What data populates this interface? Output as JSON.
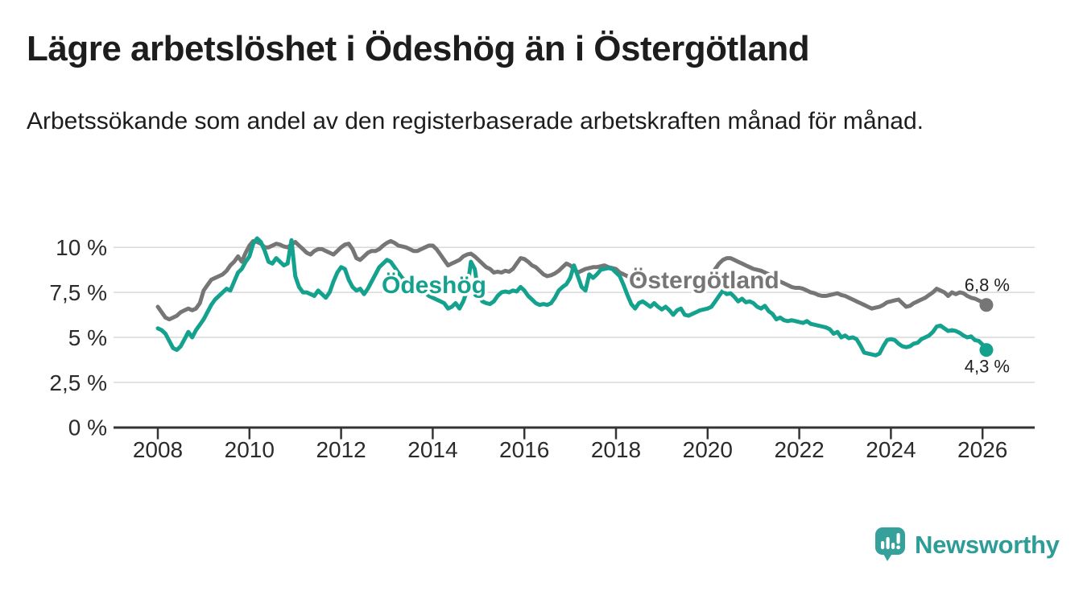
{
  "header": {
    "title": "Lägre arbetslöshet i Ödeshög än i Östergötland",
    "subtitle": "Arbetssökande som andel av den registerbaserade arbetskraften månad för månad."
  },
  "chart_data": {
    "type": "line",
    "unit": "%",
    "title": "Lägre arbetslöshet i Ödeshög än i Östergötland",
    "x_start_year": 2008,
    "x_step_months": 1,
    "x_end": "2026-02",
    "xlim": [
      2007.0,
      2027.2
    ],
    "ylim": [
      0,
      10.8
    ],
    "grid": "horizontal",
    "legend_position": "inline-labels",
    "y_ticks": [
      {
        "value": 0,
        "label": "0 %"
      },
      {
        "value": 2.5,
        "label": "2,5 %"
      },
      {
        "value": 5,
        "label": "5 %"
      },
      {
        "value": 7.5,
        "label": "7,5 %"
      },
      {
        "value": 10,
        "label": "10 %"
      }
    ],
    "x_ticks": [
      {
        "year": 2008,
        "label": "2008"
      },
      {
        "year": 2010,
        "label": "2010"
      },
      {
        "year": 2012,
        "label": "2012"
      },
      {
        "year": 2014,
        "label": "2014"
      },
      {
        "year": 2016,
        "label": "2016"
      },
      {
        "year": 2018,
        "label": "2018"
      },
      {
        "year": 2020,
        "label": "2020"
      },
      {
        "year": 2022,
        "label": "2022"
      },
      {
        "year": 2024,
        "label": "2024"
      },
      {
        "year": 2026,
        "label": "2026"
      }
    ],
    "series": [
      {
        "name": "Östergötland",
        "label": "Östergötland",
        "color": "#767676",
        "end_label": "6,8 %",
        "end_value": 6.8,
        "end_label_side": "above",
        "values": [
          6.7,
          6.4,
          6.1,
          6.0,
          6.1,
          6.2,
          6.4,
          6.5,
          6.6,
          6.5,
          6.6,
          6.9,
          7.6,
          7.9,
          8.2,
          8.3,
          8.4,
          8.5,
          8.7,
          9.0,
          9.2,
          9.5,
          9.2,
          9.7,
          10.1,
          10.35,
          10.3,
          10.2,
          10.0,
          10.0,
          10.1,
          10.2,
          10.15,
          10.05,
          10.0,
          10.15,
          10.3,
          10.1,
          9.9,
          9.7,
          9.6,
          9.8,
          9.9,
          9.9,
          9.8,
          9.7,
          9.6,
          9.8,
          10.0,
          10.15,
          10.2,
          9.9,
          9.4,
          9.3,
          9.5,
          9.7,
          9.8,
          9.8,
          9.9,
          10.1,
          10.25,
          10.35,
          10.25,
          10.1,
          10.05,
          10.0,
          9.9,
          9.8,
          9.8,
          9.9,
          10.0,
          10.1,
          10.1,
          9.9,
          9.6,
          9.3,
          9.0,
          9.1,
          9.2,
          9.3,
          9.5,
          9.6,
          9.65,
          9.5,
          9.3,
          9.1,
          8.9,
          8.8,
          8.6,
          8.65,
          8.6,
          8.7,
          8.65,
          8.8,
          9.1,
          9.4,
          9.35,
          9.2,
          9.0,
          8.9,
          8.7,
          8.5,
          8.4,
          8.45,
          8.55,
          8.7,
          8.9,
          9.1,
          9.0,
          8.8,
          8.6,
          8.7,
          8.8,
          8.85,
          8.9,
          8.9,
          8.95,
          9.0,
          8.9,
          8.85,
          8.8,
          8.6,
          8.5,
          8.4,
          8.35,
          8.3,
          8.25,
          8.3,
          8.35,
          8.3,
          8.25,
          8.3,
          8.3,
          8.25,
          8.2,
          8.15,
          8.1,
          8.15,
          8.2,
          8.1,
          8.05,
          8.1,
          8.2,
          8.3,
          8.4,
          8.5,
          8.8,
          9.1,
          9.3,
          9.4,
          9.4,
          9.3,
          9.2,
          9.1,
          9.0,
          8.9,
          8.8,
          8.75,
          8.7,
          8.6,
          8.5,
          8.35,
          8.2,
          8.1,
          8.0,
          7.9,
          7.8,
          7.75,
          7.75,
          7.7,
          7.6,
          7.5,
          7.45,
          7.35,
          7.3,
          7.3,
          7.35,
          7.4,
          7.45,
          7.35,
          7.3,
          7.2,
          7.1,
          7.0,
          6.9,
          6.8,
          6.7,
          6.6,
          6.65,
          6.7,
          6.8,
          6.95,
          7.0,
          7.05,
          7.1,
          6.9,
          6.7,
          6.75,
          6.9,
          7.0,
          7.1,
          7.2,
          7.35,
          7.5,
          7.7,
          7.6,
          7.5,
          7.3,
          7.5,
          7.4,
          7.5,
          7.45,
          7.3,
          7.2,
          7.15,
          7.05,
          6.95,
          6.8
        ]
      },
      {
        "name": "Ödeshög",
        "label": "Ödeshög",
        "color": "#14a28e",
        "end_label": "4,3 %",
        "end_value": 4.3,
        "end_label_side": "below",
        "values": [
          5.5,
          5.4,
          5.2,
          4.8,
          4.4,
          4.3,
          4.5,
          4.9,
          5.3,
          5.0,
          5.4,
          5.7,
          6.0,
          6.4,
          6.8,
          7.1,
          7.3,
          7.5,
          7.7,
          7.6,
          8.1,
          8.6,
          8.8,
          9.2,
          9.5,
          10.2,
          10.5,
          10.3,
          9.8,
          9.2,
          9.1,
          9.4,
          9.2,
          9.0,
          9.1,
          10.4,
          8.4,
          7.8,
          7.5,
          7.5,
          7.4,
          7.3,
          7.6,
          7.4,
          7.2,
          7.5,
          8.1,
          8.6,
          8.9,
          8.8,
          8.2,
          7.8,
          7.6,
          7.7,
          7.4,
          7.7,
          8.1,
          8.5,
          8.9,
          9.1,
          9.3,
          9.2,
          8.9,
          8.6,
          8.3,
          8.1,
          7.9,
          7.7,
          7.5,
          7.4,
          7.5,
          7.3,
          7.2,
          7.1,
          7.0,
          6.9,
          6.6,
          6.7,
          6.9,
          6.6,
          7.0,
          7.6,
          9.2,
          8.8,
          7.4,
          7.0,
          6.9,
          6.85,
          7.0,
          7.3,
          7.5,
          7.55,
          7.5,
          7.6,
          7.55,
          7.8,
          7.6,
          7.3,
          7.1,
          6.9,
          6.8,
          6.85,
          6.8,
          6.9,
          7.2,
          7.6,
          7.8,
          7.95,
          8.3,
          9.0,
          8.4,
          7.8,
          7.6,
          8.5,
          8.3,
          8.5,
          8.75,
          8.8,
          8.85,
          8.8,
          8.6,
          8.4,
          7.9,
          7.35,
          6.85,
          6.6,
          6.9,
          7.0,
          6.85,
          6.7,
          6.9,
          6.7,
          6.55,
          6.7,
          6.5,
          6.25,
          6.5,
          6.6,
          6.25,
          6.2,
          6.3,
          6.4,
          6.5,
          6.55,
          6.6,
          6.7,
          7.0,
          7.3,
          7.6,
          7.4,
          7.45,
          7.25,
          7.0,
          7.15,
          6.95,
          7.0,
          6.9,
          6.7,
          6.6,
          6.75,
          6.45,
          6.3,
          6.0,
          6.1,
          5.95,
          5.9,
          5.95,
          5.9,
          5.85,
          5.8,
          5.9,
          5.75,
          5.7,
          5.65,
          5.6,
          5.55,
          5.45,
          5.2,
          5.3,
          5.0,
          5.1,
          4.95,
          5.0,
          4.9,
          4.55,
          4.15,
          4.1,
          4.05,
          4.0,
          4.1,
          4.5,
          4.85,
          4.9,
          4.85,
          4.65,
          4.5,
          4.45,
          4.5,
          4.65,
          4.7,
          4.9,
          5.0,
          5.1,
          5.3,
          5.6,
          5.65,
          5.5,
          5.35,
          5.4,
          5.35,
          5.25,
          5.1,
          5.0,
          5.05,
          4.85,
          4.8,
          4.6,
          4.3
        ]
      }
    ],
    "colors": {
      "odeshog": "#14a28e",
      "ostergotland": "#767676",
      "gridline": "#d9d9d9",
      "axis": "#343434",
      "text": "#1d1d1d"
    }
  },
  "footer": {
    "brand": "Newsworthy",
    "brand_color": "#2f9d97",
    "logo_icon": "bar-chart-speech-bubble"
  }
}
